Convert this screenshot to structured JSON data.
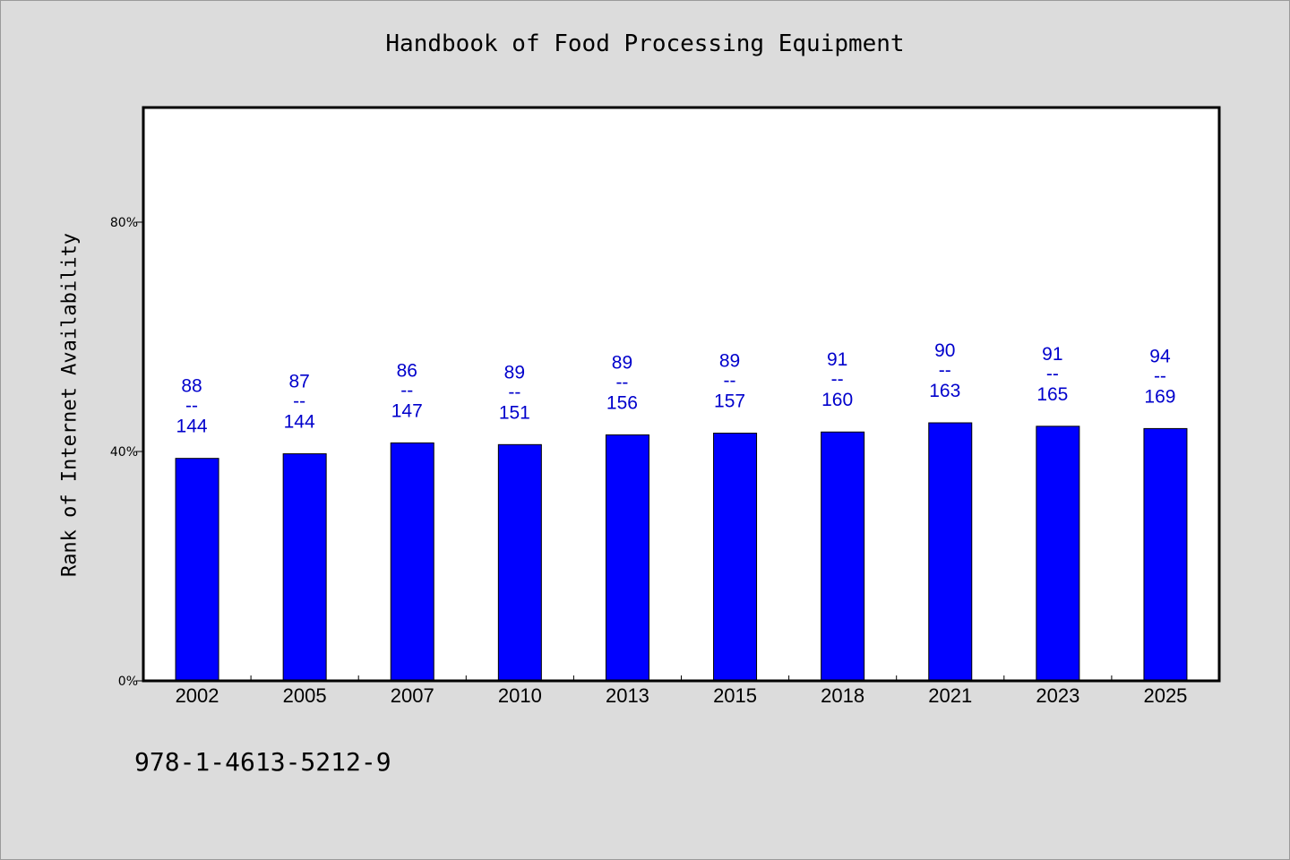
{
  "title": "Handbook of Food Processing Equipment",
  "footer": "978-1-4613-5212-9",
  "colors": {
    "bar": "#0000ff",
    "label": "#0000cc",
    "background": "#dcdcdc",
    "plot_background": "#ffffff"
  },
  "chart_data": {
    "type": "bar",
    "title": "Handbook of Food Processing Equipment",
    "xlabel": "",
    "ylabel": "Rank of Internet Availability",
    "ylim": [
      0,
      100
    ],
    "yticks": [
      0,
      40,
      80
    ],
    "ytick_labels": [
      "0%",
      "40%",
      "80%"
    ],
    "grid": false,
    "categories": [
      "2002",
      "2005",
      "2007",
      "2010",
      "2013",
      "2015",
      "2018",
      "2021",
      "2023",
      "2025"
    ],
    "values": [
      38.8,
      39.6,
      41.5,
      41.2,
      42.9,
      43.2,
      43.4,
      45.0,
      44.4,
      44.0
    ],
    "annotations": [
      {
        "top": "88",
        "sep": "--",
        "bottom": "144"
      },
      {
        "top": "87",
        "sep": "--",
        "bottom": "144"
      },
      {
        "top": "86",
        "sep": "--",
        "bottom": "147"
      },
      {
        "top": "89",
        "sep": "--",
        "bottom": "151"
      },
      {
        "top": "89",
        "sep": "--",
        "bottom": "156"
      },
      {
        "top": "89",
        "sep": "--",
        "bottom": "157"
      },
      {
        "top": "91",
        "sep": "--",
        "bottom": "160"
      },
      {
        "top": "90",
        "sep": "--",
        "bottom": "163"
      },
      {
        "top": "91",
        "sep": "--",
        "bottom": "165"
      },
      {
        "top": "94",
        "sep": "--",
        "bottom": "169"
      }
    ]
  }
}
